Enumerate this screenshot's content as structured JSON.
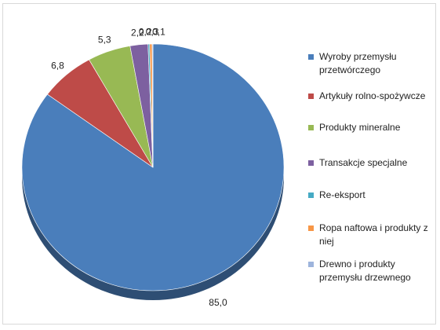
{
  "chart_data": {
    "type": "pie",
    "title": "",
    "categories": [
      "Wyroby przemysłu przetwórczego",
      "Artykuły rolno-spożywcze",
      "Produkty mineralne",
      "Transakcje specjalne",
      "Re-eksport",
      "Ropa naftowa i produkty z niej",
      "Drewno i produkty przemysłu drzewnego"
    ],
    "values": [
      85.0,
      6.8,
      5.3,
      2.2,
      0.2,
      0.3,
      0.1
    ],
    "value_labels": [
      "85,0",
      "6,8",
      "5,3",
      "2,2",
      "0,2",
      "0,3",
      "0,1"
    ],
    "colors": [
      "#4A7EBB",
      "#BE4B48",
      "#98B954",
      "#7D60A0",
      "#46AAC4",
      "#F79646",
      "#9DB4DC"
    ],
    "legend_position": "right",
    "style": "3d-tilted"
  }
}
